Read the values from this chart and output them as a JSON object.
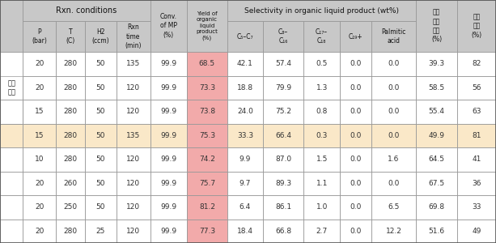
{
  "rows": [
    [
      "20",
      "280",
      "50",
      "135",
      "99.9",
      "68.5",
      "42.1",
      "57.4",
      "0.5",
      "0.0",
      "0.0",
      "39.3",
      "82"
    ],
    [
      "20",
      "280",
      "50",
      "120",
      "99.9",
      "73.3",
      "18.8",
      "79.9",
      "1.3",
      "0.0",
      "0.0",
      "58.5",
      "56"
    ],
    [
      "15",
      "280",
      "50",
      "120",
      "99.9",
      "73.8",
      "24.0",
      "75.2",
      "0.8",
      "0.0",
      "0.0",
      "55.4",
      "63"
    ],
    [
      "15",
      "280",
      "50",
      "135",
      "99.9",
      "75.3",
      "33.3",
      "66.4",
      "0.3",
      "0.0",
      "0.0",
      "49.9",
      "81"
    ],
    [
      "10",
      "280",
      "50",
      "120",
      "99.9",
      "74.2",
      "9.9",
      "87.0",
      "1.5",
      "0.0",
      "1.6",
      "64.5",
      "41"
    ],
    [
      "20",
      "260",
      "50",
      "120",
      "99.9",
      "75.7",
      "9.7",
      "89.3",
      "1.1",
      "0.0",
      "0.0",
      "67.5",
      "36"
    ],
    [
      "20",
      "250",
      "50",
      "120",
      "99.9",
      "81.2",
      "6.4",
      "86.1",
      "1.0",
      "0.0",
      "6.5",
      "69.8",
      "33"
    ],
    [
      "20",
      "280",
      "25",
      "120",
      "99.9",
      "77.3",
      "18.4",
      "66.8",
      "2.7",
      "0.0",
      "12.2",
      "51.6",
      "49"
    ]
  ],
  "highlight_row": 3,
  "yield_pink": "#F2AAAA",
  "highlight_bg": "#FAE8C8",
  "header_bg": "#C8C8C8",
  "white": "#FFFFFF",
  "border_color": "#999999",
  "text_color": "#333333",
  "label_span_text": "기준\n조건",
  "h1_rxn": "Rxn. conditions",
  "h1_sel": "Selectivity in organic liquid product (wt%)",
  "conv_header": "Conv.\nof MP\n(%)",
  "yield_header": "Yield of\norganic\nliquid\nproduct\n(%)",
  "p_header": "P\n(bar)",
  "t_header": "T\n(C)",
  "h2_header": "H2\n(ccm)",
  "rxn_header": "Rxn\ntime\n(min)",
  "c57_header": "C₅–C₇",
  "c816_header": "C₈–\nC₁₆",
  "c1718_header": "C₁₇–\nC₁₈",
  "c19_header": "C₁₉+",
  "palmitic_header": "Palmitic\nacid",
  "hang_header": "항공\n유분\n수율\n(%)",
  "iso_header": "이성\n화율\n(%)"
}
